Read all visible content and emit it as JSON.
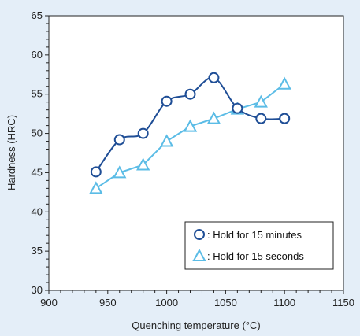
{
  "chart_data": {
    "type": "line",
    "title": "",
    "xlabel": "Quenching temperature (°C)",
    "ylabel": "Hardness (HRC)",
    "xlim": [
      900,
      1150
    ],
    "ylim": [
      30,
      65
    ],
    "xticks": [
      900,
      950,
      1000,
      1050,
      1100,
      1150
    ],
    "yticks": [
      30,
      35,
      40,
      45,
      50,
      55,
      60,
      65
    ],
    "grid": false,
    "legend_position": "bottom-right",
    "series": [
      {
        "name": ": Hold for 15 minutes",
        "marker": "circle",
        "color": "#1f4e96",
        "smooth": true,
        "x": [
          940,
          960,
          980,
          1000,
          1020,
          1040,
          1060,
          1080,
          1100
        ],
        "y": [
          45.1,
          49.2,
          50.0,
          54.1,
          55.0,
          57.1,
          53.2,
          51.9,
          51.9
        ]
      },
      {
        "name": ": Hold for 15 seconds",
        "marker": "triangle",
        "color": "#5bbce6",
        "smooth": false,
        "x": [
          940,
          960,
          980,
          1000,
          1020,
          1040,
          1060,
          1080,
          1100
        ],
        "y": [
          43.0,
          45.0,
          46.0,
          49.0,
          50.9,
          51.9,
          53.1,
          54.0,
          56.3
        ]
      }
    ]
  }
}
